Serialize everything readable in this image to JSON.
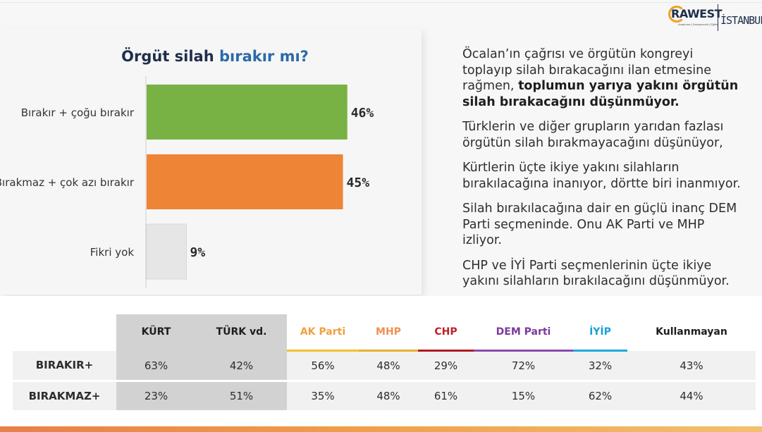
{
  "chart_data": {
    "type": "bar",
    "orientation": "horizontal",
    "title_part1": "Örgüt silah ",
    "title_part2": "bırakır mı?",
    "categories": [
      "Bırakır + çoğu bırakır",
      "Bırakmaz + çok azı bırakır",
      "Fikri yok"
    ],
    "values": [
      46,
      45,
      9
    ],
    "value_labels": [
      "46%",
      "45%",
      "9%"
    ],
    "colors": [
      "#79b244",
      "#ee8436",
      "#e6e6e6"
    ],
    "xlim": [
      0,
      50
    ],
    "grid": false,
    "legend": "none"
  },
  "text": {
    "p1_plain": "Öcalan’ın çağrısı ve örgütün kongreyi toplayıp silah bırakacağını ilan etmesine rağmen, ",
    "p1_bold": "toplumun yarıya yakını örgütün silah bırakacağını düşünmüyor.",
    "p2": "Türklerin ve diğer grupların yarıdan fazlası örgütün silah bırakmayacağını düşünüyor,",
    "p3": "Kürtlerin üçte ikiye yakını silahların bırakılacağına inanıyor, dörtte biri inanmıyor.",
    "p4": "Silah bırakılacağına dair en güçlü inanç DEM Parti seçmeninde. Onu AK Parti ve MHP izliyor.",
    "p5": "CHP ve İYİ Parti seçmenlerinin üçte ikiye yakını silahların bırakılacağını düşünmüyor."
  },
  "logo": {
    "brand": "RAWEST",
    "subtitle": "Araştırma | Danışmanlık | Eğitim",
    "city": "İSTANBUL"
  },
  "table": {
    "headers": [
      {
        "label": "KÜRT",
        "color": "#1e1e1e",
        "underline": "",
        "grey": true
      },
      {
        "label": "TÜRK vd.",
        "color": "#1e1e1e",
        "underline": "",
        "grey": true
      },
      {
        "label": "AK Parti",
        "color": "#f0a040",
        "underline": "#f2c230",
        "grey": false
      },
      {
        "label": "MHP",
        "color": "#ee9050",
        "underline": "#e8b030",
        "grey": false
      },
      {
        "label": "CHP",
        "color": "#c0202a",
        "underline": "#b01a22",
        "grey": false
      },
      {
        "label": "DEM Parti",
        "color": "#7a3a9a",
        "underline": "#8a4aaa",
        "grey": false
      },
      {
        "label": "İYİP",
        "color": "#1aa0d8",
        "underline": "#20a8e0",
        "grey": false
      },
      {
        "label": "Kullanmayan",
        "color": "#1e1e1e",
        "underline": "",
        "grey": false
      }
    ],
    "rows": [
      {
        "label": "BIRAKIR+",
        "values": [
          "63%",
          "42%",
          "56%",
          "48%",
          "29%",
          "72%",
          "32%",
          "43%"
        ]
      },
      {
        "label": "BIRAKMAZ+",
        "values": [
          "23%",
          "51%",
          "35%",
          "48%",
          "61%",
          "15%",
          "62%",
          "44%"
        ]
      }
    ]
  }
}
